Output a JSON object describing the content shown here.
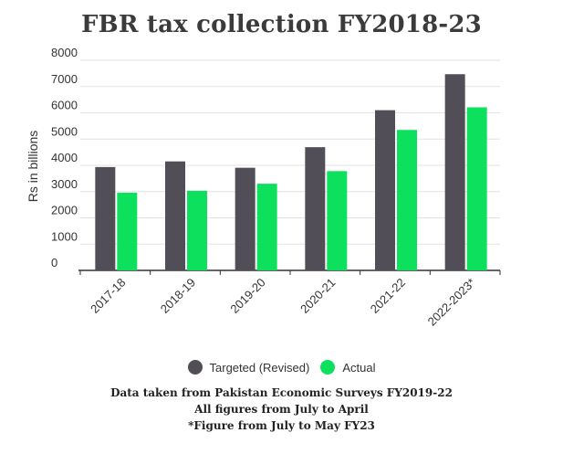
{
  "chart_data": {
    "type": "bar",
    "title": "FBR tax collection FY2018-23",
    "ylabel": "Rs in billions",
    "xlabel": "",
    "ylim": [
      0,
      8000
    ],
    "yticks": [
      0,
      1000,
      2000,
      3000,
      4000,
      5000,
      6000,
      7000,
      8000
    ],
    "grid": true,
    "legend_position": "bottom",
    "categories": [
      "2017-18",
      "2018-19",
      "2019-20",
      "2020-21",
      "2021-22",
      "2022-2023*"
    ],
    "series": [
      {
        "name": "Targeted (Revised)",
        "color": "#524e57",
        "values": [
          3935,
          4150,
          3908,
          4691,
          6100,
          7470
        ]
      },
      {
        "name": "Actual",
        "color": "#0de05c",
        "values": [
          2958,
          3030,
          3300,
          3780,
          5347,
          6210
        ]
      }
    ]
  },
  "notes": [
    "Data taken from Pakistan Economic Surveys FY2019-22",
    "All figures from July to April",
    "*Figure from July to May FY23"
  ]
}
